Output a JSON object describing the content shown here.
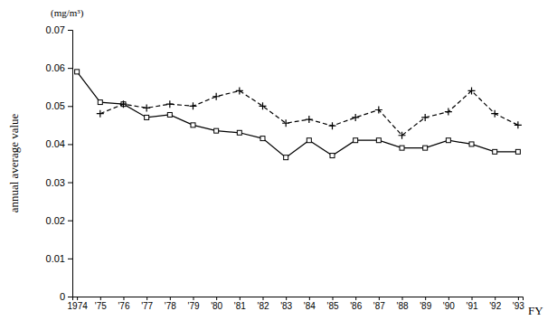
{
  "chart_data": {
    "type": "line",
    "y_label": "annual average value",
    "x_label": "FY",
    "annotations": [
      "(mg/m³)"
    ],
    "categories": [
      "1974",
      "'75",
      "'76",
      "'77",
      "'78",
      "'79",
      "'80",
      "'81",
      "'82",
      "'83",
      "'84",
      "'85",
      "'86",
      "'87",
      "'88",
      "'89",
      "'90",
      "'91",
      "'92",
      "'93"
    ],
    "series": [
      {
        "color": "#000000",
        "marker": "square",
        "line_style": "solid",
        "values": [
          0.059,
          0.051,
          0.0505,
          0.047,
          0.0477,
          0.045,
          0.0435,
          0.043,
          0.0415,
          0.0365,
          0.041,
          0.037,
          0.041,
          0.041,
          0.039,
          0.039,
          0.041,
          0.04,
          0.038,
          0.038
        ]
      },
      {
        "color": "#000000",
        "marker": "plus",
        "line_style": "dashed",
        "values": [
          null,
          0.048,
          0.0505,
          0.0495,
          0.0505,
          0.05,
          0.0525,
          0.054,
          0.05,
          0.0455,
          0.0465,
          0.0448,
          0.047,
          0.049,
          0.0423,
          0.047,
          0.0485,
          0.054,
          0.048,
          0.045
        ]
      }
    ],
    "ylim": [
      0,
      0.07
    ],
    "yticks": [
      0,
      0.01,
      0.02,
      0.03,
      0.04,
      0.05,
      0.06,
      0.07
    ],
    "grid": false
  }
}
